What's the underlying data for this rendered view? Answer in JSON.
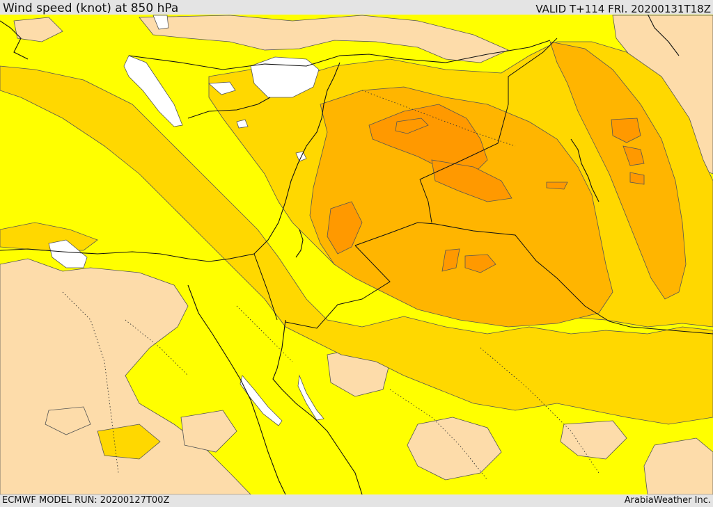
{
  "header": {
    "title": "Wind speed (knot) at 850 hPa",
    "valid": "VALID T+114 FRI. 20200131T18Z"
  },
  "footer": {
    "model_run": "ECMWF MODEL RUN: 20200127T00Z",
    "credit": "ArabiaWeather Inc."
  },
  "map": {
    "colors": {
      "background": "#e4e4e4",
      "very_low": "#ffffff",
      "low": "#fddcaa",
      "moderate": "#ffff00",
      "elevated": "#ffd800",
      "high": "#ffb500",
      "very_high": "#ff9900",
      "contour": "#555555",
      "coast": "#111111"
    }
  }
}
